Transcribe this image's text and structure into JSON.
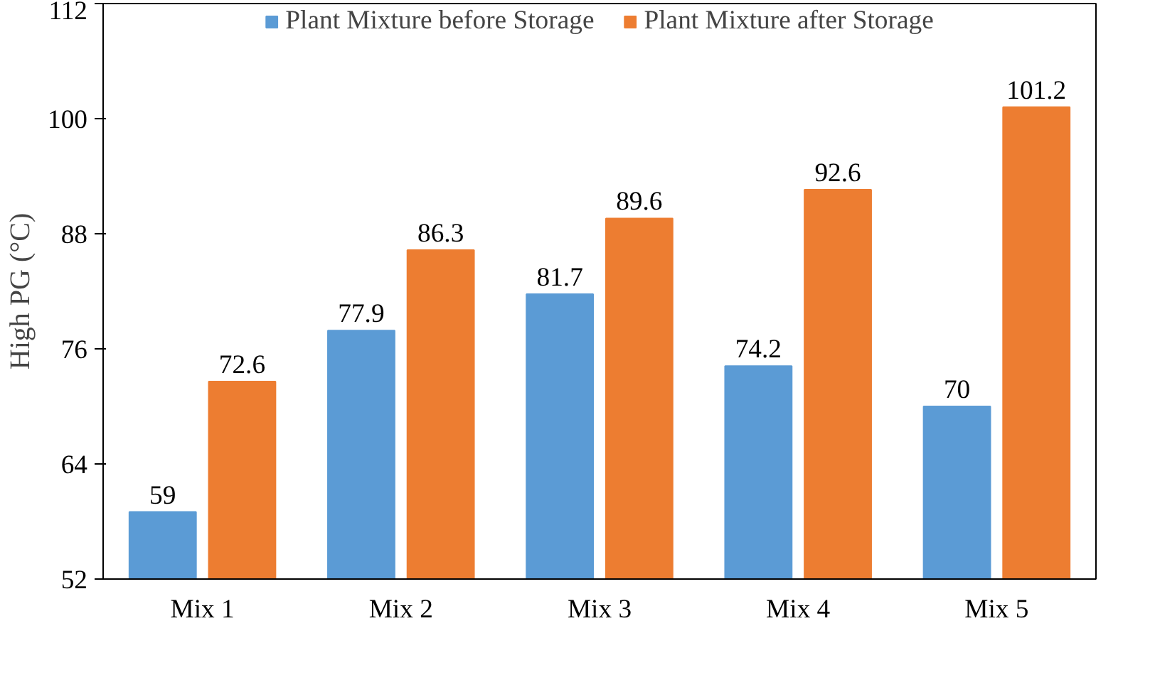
{
  "chart_data": {
    "type": "bar",
    "ylabel": "High PG (°C)",
    "categories": [
      "Mix 1",
      "Mix 2",
      "Mix 3",
      "Mix 4",
      "Mix 5"
    ],
    "series": [
      {
        "name": "Plant Mixture before Storage",
        "color": "#5b9bd5",
        "values": [
          59,
          77.9,
          81.7,
          74.2,
          70
        ]
      },
      {
        "name": "Plant Mixture after Storage",
        "color": "#ed7d31",
        "values": [
          72.6,
          86.3,
          89.6,
          92.6,
          101.2
        ]
      }
    ],
    "ylim": [
      52,
      112
    ],
    "yticks": [
      52,
      64,
      76,
      88,
      100,
      112
    ],
    "grid": false,
    "legend": "top",
    "data_labels": true
  }
}
